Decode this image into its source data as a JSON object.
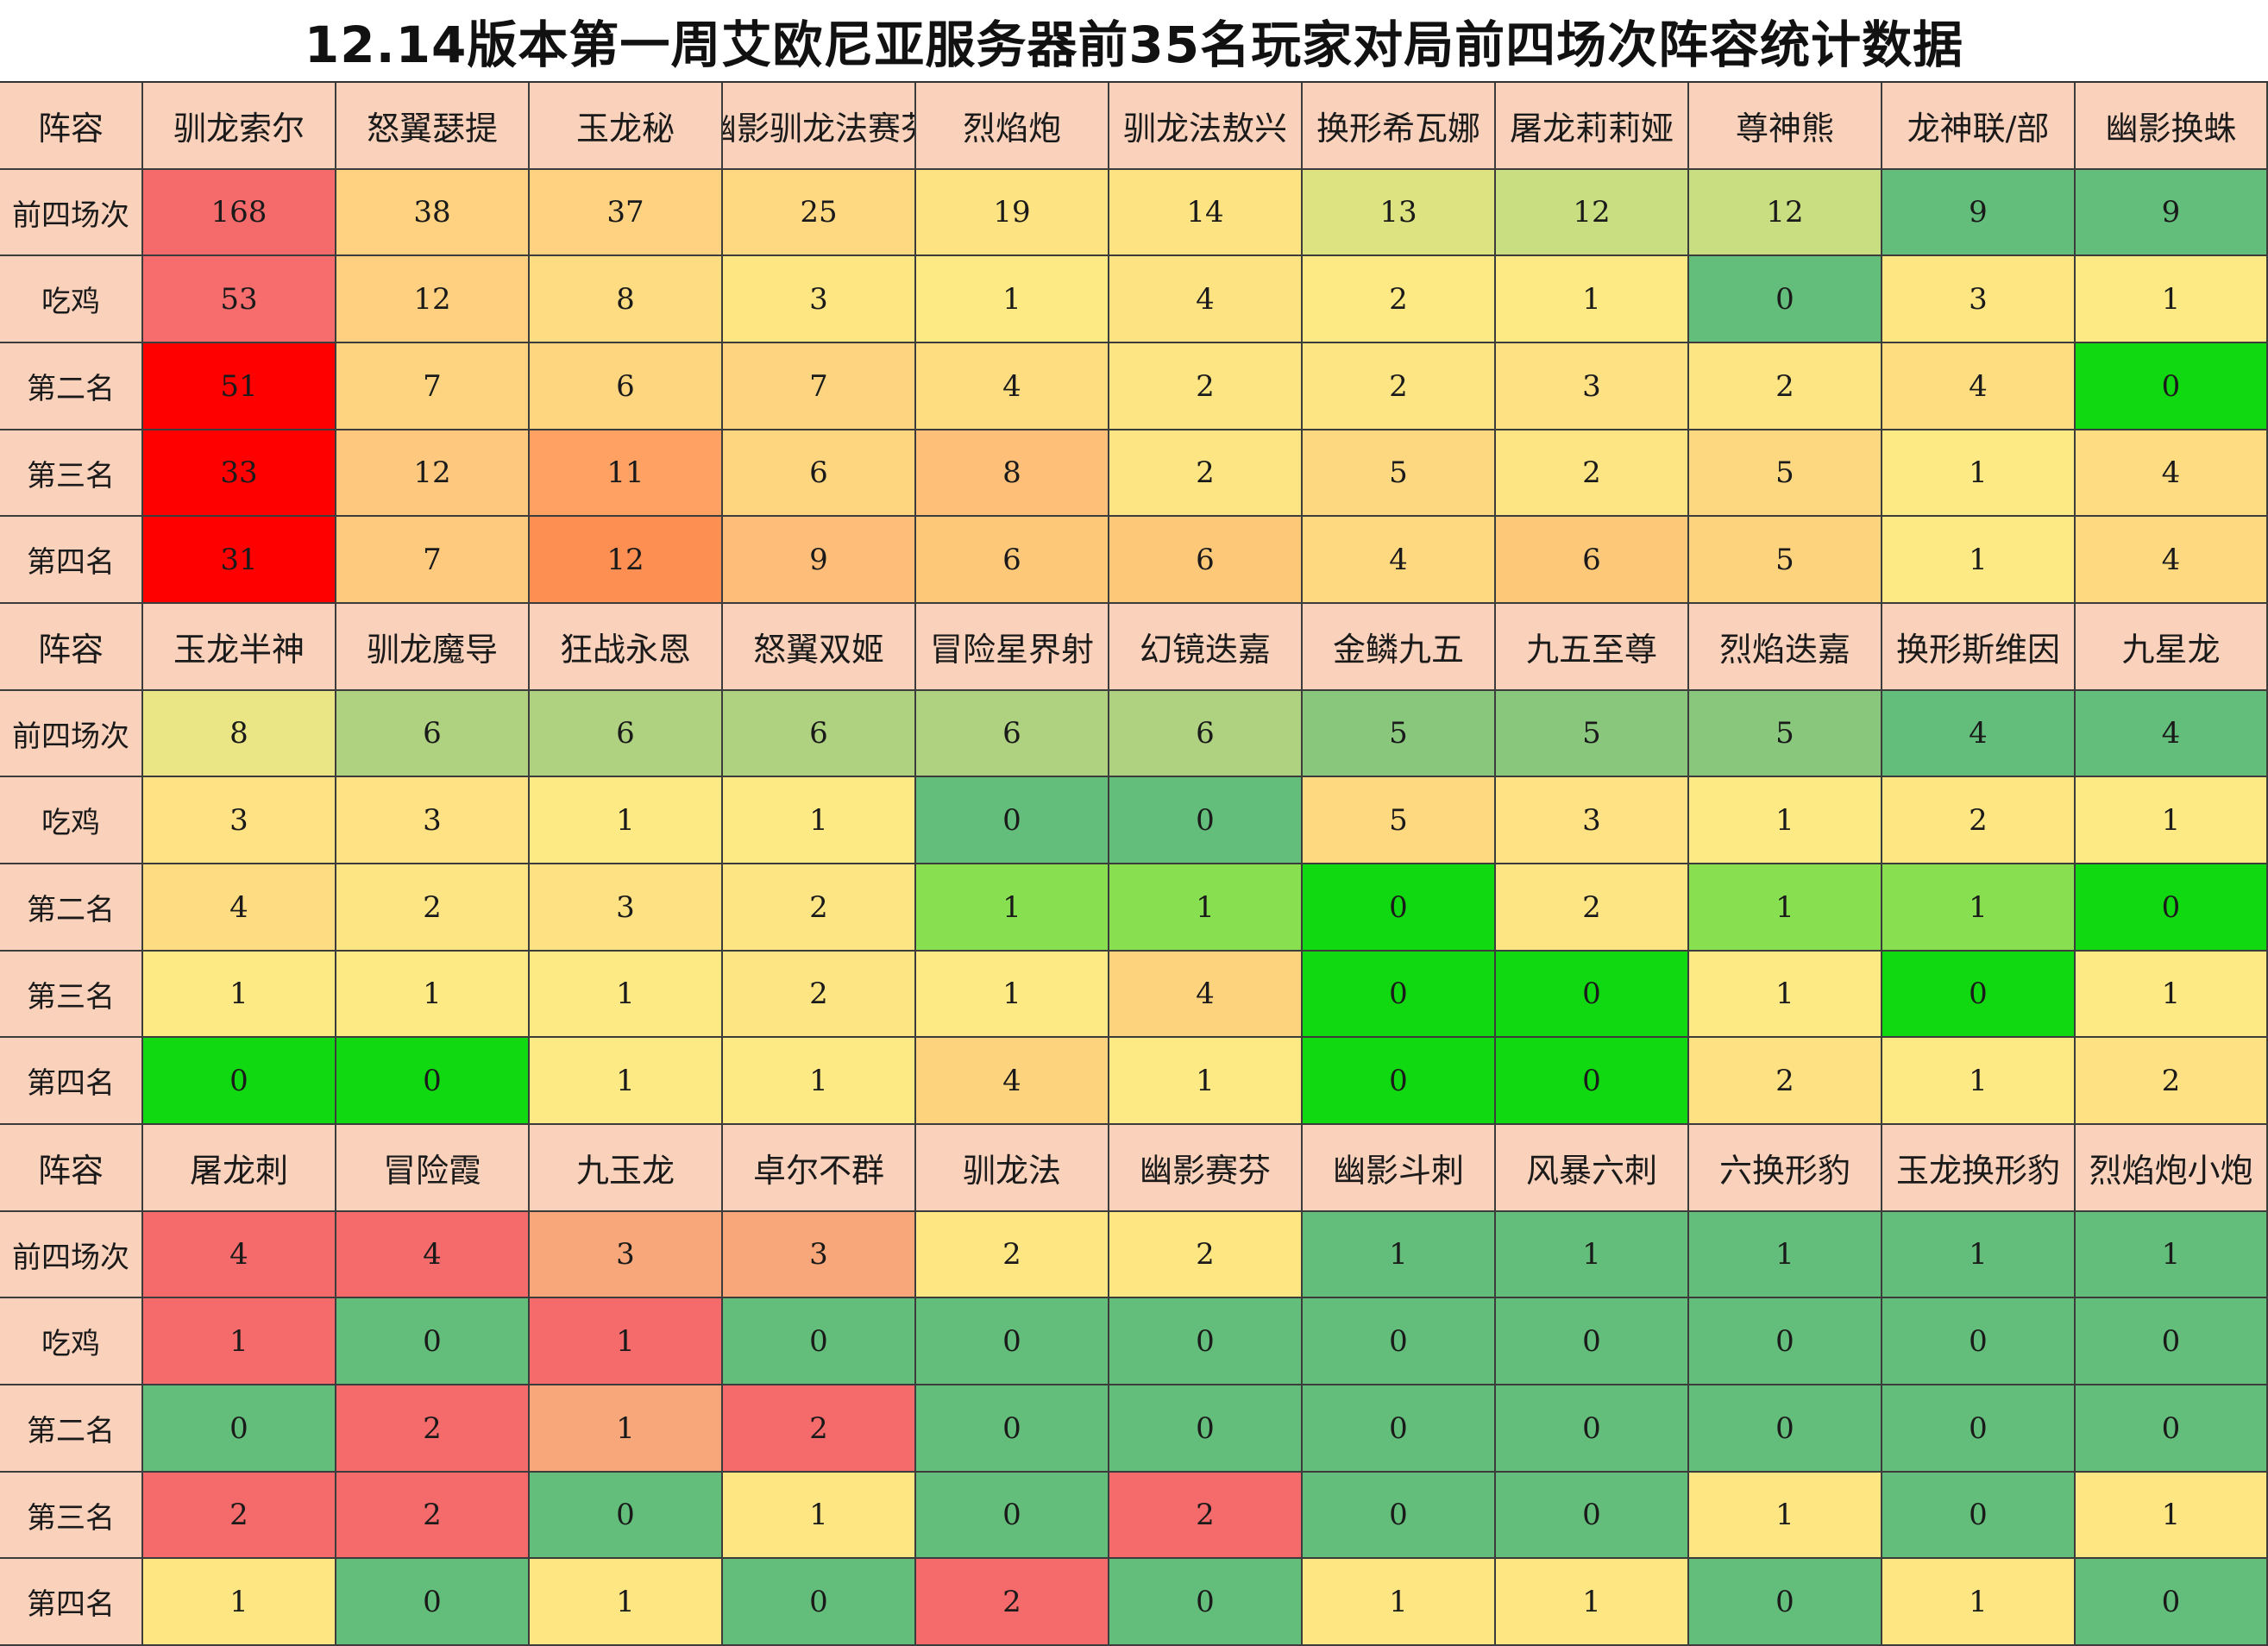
{
  "title": "12.14版本第一周艾欧尼亚服务器前35名玩家对局前四场次阵容统计数据",
  "chart_data": {
    "type": "table",
    "title": "12.14版本第一周艾欧尼亚服务器前35名玩家对局前四场次阵容统计数据",
    "header_label": "阵容",
    "row_labels": [
      "前四场次",
      "吃鸡",
      "第二名",
      "第三名",
      "第四名"
    ],
    "blocks": [
      {
        "columns": [
          "驯龙索尔",
          "怒翼瑟提",
          "玉龙秘",
          "幽影驯龙法赛芬",
          "烈焰炮",
          "驯龙法敖兴",
          "换形希瓦娜",
          "屠龙莉莉娅",
          "尊神熊",
          "龙神联/部",
          "幽影换蛛"
        ],
        "rows": [
          [
            168,
            38,
            37,
            25,
            19,
            14,
            13,
            12,
            12,
            9,
            9
          ],
          [
            53,
            12,
            8,
            3,
            1,
            4,
            2,
            1,
            0,
            3,
            1
          ],
          [
            51,
            7,
            6,
            7,
            4,
            2,
            2,
            3,
            2,
            4,
            0
          ],
          [
            33,
            12,
            11,
            6,
            8,
            2,
            5,
            2,
            5,
            1,
            4
          ],
          [
            31,
            7,
            12,
            9,
            6,
            6,
            4,
            6,
            5,
            1,
            4
          ]
        ],
        "fills": [
          [
            "#f56a6a",
            "#fed280",
            "#fed280",
            "#fed982",
            "#fee382",
            "#fee382",
            "#dde381",
            "#c9dd81",
            "#c9dd81",
            "#63be7b",
            "#63be7b"
          ],
          [
            "#f76d6d",
            "#fed080",
            "#fedc82",
            "#fee682",
            "#feea84",
            "#fee383",
            "#feea84",
            "#feea84",
            "#63be7b",
            "#fee683",
            "#feea84"
          ],
          [
            "#ff0000",
            "#fed480",
            "#fed680",
            "#fed480",
            "#fedd81",
            "#fee583",
            "#fee583",
            "#fee182",
            "#fee583",
            "#fedd81",
            "#11d911"
          ],
          [
            "#ff0000",
            "#fec97e",
            "#fea162",
            "#fed680",
            "#fec079",
            "#fee583",
            "#fed880",
            "#fee583",
            "#fed880",
            "#feea84",
            "#fedc82"
          ],
          [
            "#ff0000",
            "#feca7e",
            "#fe8f53",
            "#febd78",
            "#fec879",
            "#fec879",
            "#fed97f",
            "#fec879",
            "#fed37e",
            "#feea84",
            "#fed97f"
          ]
        ]
      },
      {
        "columns": [
          "玉龙半神",
          "驯龙魔导",
          "狂战永恩",
          "怒翼双姬",
          "冒险星界射",
          "幻镜迭嘉",
          "金鳞九五",
          "九五至尊",
          "烈焰迭嘉",
          "换形斯维因",
          "九星龙"
        ],
        "rows": [
          [
            8,
            6,
            6,
            6,
            6,
            6,
            5,
            5,
            5,
            4,
            4
          ],
          [
            3,
            3,
            1,
            1,
            0,
            0,
            5,
            3,
            1,
            2,
            1
          ],
          [
            4,
            2,
            3,
            2,
            1,
            1,
            0,
            2,
            1,
            1,
            0
          ],
          [
            1,
            1,
            1,
            2,
            1,
            4,
            0,
            0,
            1,
            0,
            1
          ],
          [
            0,
            0,
            1,
            1,
            4,
            1,
            0,
            0,
            2,
            1,
            2
          ]
        ],
        "fills": [
          [
            "#ebe685",
            "#aed27f",
            "#aed27f",
            "#aed27f",
            "#aed27f",
            "#aed27f",
            "#88c77c",
            "#88c77c",
            "#88c77c",
            "#63be7b",
            "#63be7b"
          ],
          [
            "#fee283",
            "#fee283",
            "#feea84",
            "#feea84",
            "#63be7b",
            "#63be7b",
            "#fed97f",
            "#fee283",
            "#feea84",
            "#fee683",
            "#feea84"
          ],
          [
            "#fedc82",
            "#fee583",
            "#fee182",
            "#fee583",
            "#88e050",
            "#88e050",
            "#11d911",
            "#fee583",
            "#88e050",
            "#88e050",
            "#11d911"
          ],
          [
            "#feea84",
            "#feea84",
            "#feea84",
            "#fee583",
            "#feea84",
            "#fed37e",
            "#11d911",
            "#11d911",
            "#feea84",
            "#11d911",
            "#feea84"
          ],
          [
            "#11d911",
            "#11d911",
            "#feea84",
            "#feea84",
            "#fed37e",
            "#feea84",
            "#11d911",
            "#11d911",
            "#fee182",
            "#feea84",
            "#fee182"
          ]
        ]
      },
      {
        "columns": [
          "屠龙刺",
          "冒险霞",
          "九玉龙",
          "卓尔不群",
          "驯龙法",
          "幽影赛芬",
          "幽影斗刺",
          "风暴六刺",
          "六换形豹",
          "玉龙换形豹",
          "烈焰炮小炮"
        ],
        "rows": [
          [
            4,
            4,
            3,
            3,
            2,
            2,
            1,
            1,
            1,
            1,
            1
          ],
          [
            1,
            0,
            1,
            0,
            0,
            0,
            0,
            0,
            0,
            0,
            0
          ],
          [
            0,
            2,
            1,
            2,
            0,
            0,
            0,
            0,
            0,
            0,
            0
          ],
          [
            2,
            2,
            0,
            1,
            0,
            2,
            0,
            0,
            1,
            0,
            1
          ],
          [
            1,
            0,
            1,
            0,
            2,
            0,
            1,
            1,
            0,
            1,
            0
          ]
        ],
        "fills": [
          [
            "#f56a6a",
            "#f56a6a",
            "#f8a77a",
            "#f8a77a",
            "#fee783",
            "#fee783",
            "#63be7b",
            "#63be7b",
            "#63be7b",
            "#63be7b",
            "#63be7b"
          ],
          [
            "#f56a6a",
            "#63be7b",
            "#f56a6a",
            "#63be7b",
            "#63be7b",
            "#63be7b",
            "#63be7b",
            "#63be7b",
            "#63be7b",
            "#63be7b",
            "#63be7b"
          ],
          [
            "#63be7b",
            "#f56a6a",
            "#f8a77a",
            "#f56a6a",
            "#63be7b",
            "#63be7b",
            "#63be7b",
            "#63be7b",
            "#63be7b",
            "#63be7b",
            "#63be7b"
          ],
          [
            "#f56a6a",
            "#f56a6a",
            "#63be7b",
            "#fee783",
            "#63be7b",
            "#f56a6a",
            "#63be7b",
            "#63be7b",
            "#fee783",
            "#63be7b",
            "#fee783"
          ],
          [
            "#fee783",
            "#63be7b",
            "#fee783",
            "#63be7b",
            "#f56a6a",
            "#63be7b",
            "#fee783",
            "#fee783",
            "#63be7b",
            "#fee783",
            "#63be7b"
          ]
        ]
      }
    ]
  }
}
